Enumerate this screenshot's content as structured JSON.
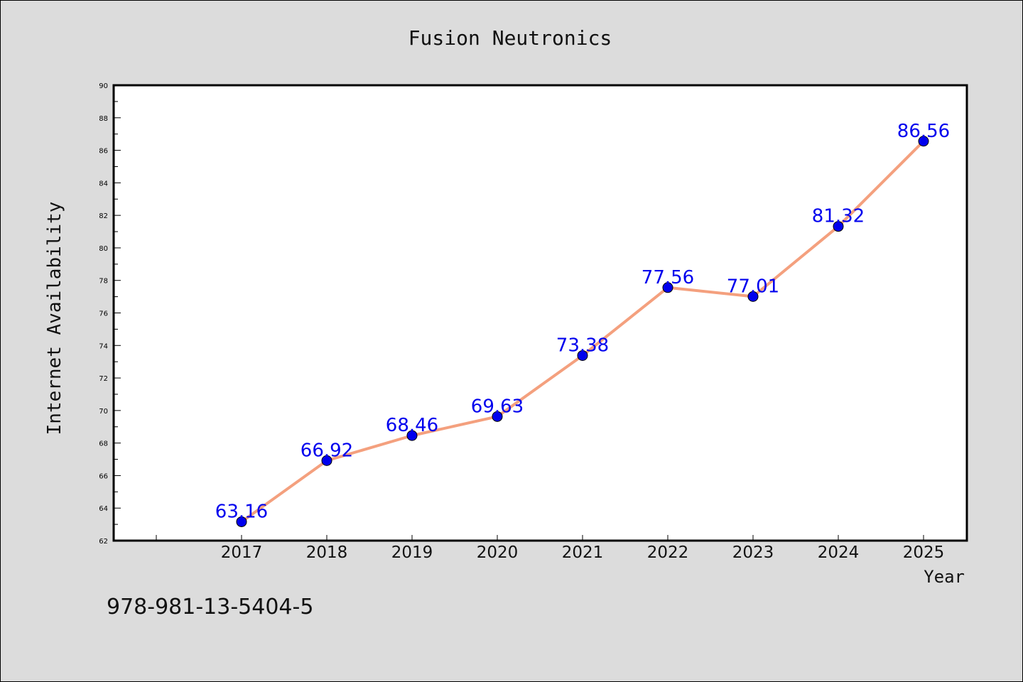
{
  "chart_data": {
    "type": "line",
    "title": "Fusion Neutronics",
    "xlabel": "Year",
    "ylabel": "Internet Availability",
    "categories": [
      "2017",
      "2018",
      "2019",
      "2020",
      "2021",
      "2022",
      "2023",
      "2024",
      "2025"
    ],
    "series": [
      {
        "values": [
          63.16,
          66.92,
          68.46,
          69.63,
          73.38,
          77.56,
          77.01,
          81.32,
          86.56
        ],
        "line_color": "#f4a07e",
        "marker_color": "#0000ee"
      }
    ],
    "ylim": [
      62,
      90
    ],
    "yticks": [
      62,
      64,
      66,
      68,
      70,
      72,
      74,
      76,
      78,
      80,
      82,
      84,
      86,
      88,
      90
    ],
    "data_label_color": "#0000ee",
    "grid": false,
    "legend": "none"
  },
  "footer": {
    "isbn": "978-981-13-5404-5"
  },
  "colors": {
    "background": "#dcdcdc",
    "plot_background": "#ffffff",
    "axis": "#000000"
  }
}
